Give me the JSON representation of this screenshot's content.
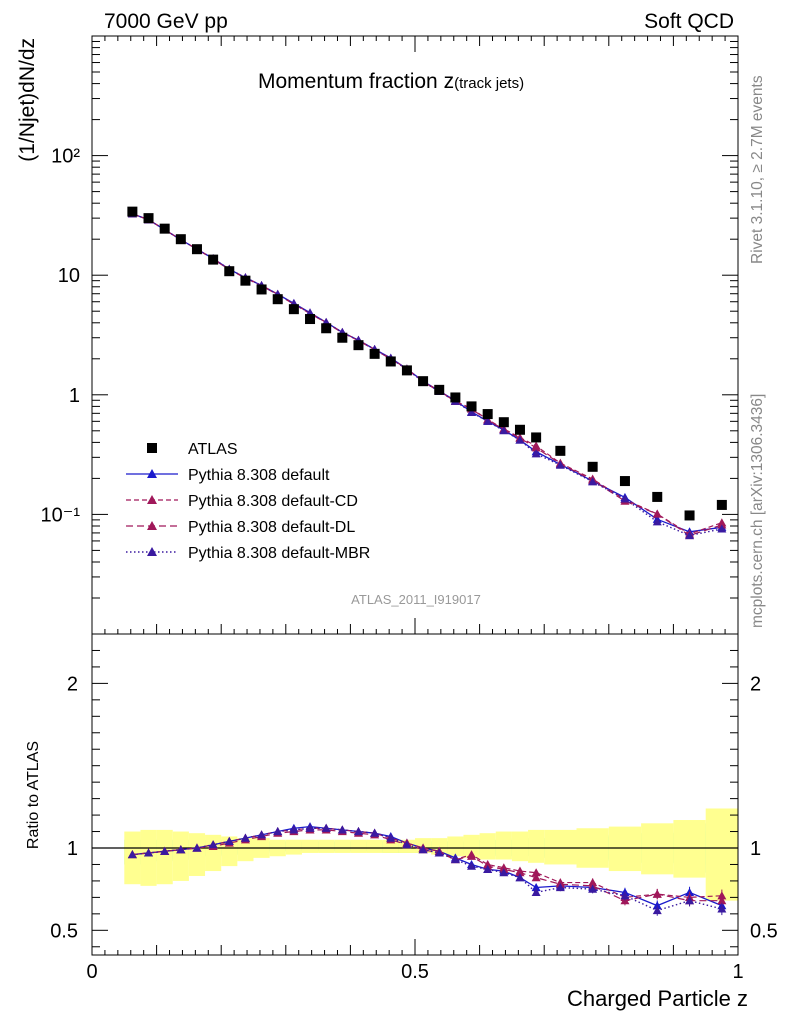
{
  "header": {
    "left": "7000 GeV pp",
    "right": "Soft QCD"
  },
  "side_labels": {
    "rivet": "Rivet 3.1.10, ≥ 2.7M events",
    "mcplots": "mcplots.cern.ch [arXiv:1306.3436]"
  },
  "chart_data": {
    "type": "line",
    "title_main": "Momentum fraction z",
    "title_sub": "(track jets)",
    "xlabel": "Charged Particle z",
    "ylabel": "(1/Njet)dN/dz",
    "ratio_ylabel": "Ratio to ATLAS",
    "analysis_tag": "ATLAS_2011_I919017",
    "xlim": [
      0,
      1
    ],
    "ylim": [
      0.01,
      1000
    ],
    "yscale": "log",
    "ratio_ylim": [
      0.35,
      2.3
    ],
    "x_ticks": [
      "0",
      "0.5",
      "1"
    ],
    "y_ticks": [
      "10⁻¹",
      "1",
      "10",
      "10²"
    ],
    "ratio_ticks": [
      "0.5",
      "1",
      "2"
    ],
    "legend_position": "lower-left",
    "colors": {
      "data": "#000000",
      "default": "#1a1acc",
      "cd": "#a0185a",
      "dl": "#a0185a",
      "mbr": "#3a1aa0",
      "band_inner": "#90f090",
      "band_outer": "#ffff90"
    },
    "x": [
      0.0625,
      0.0875,
      0.1125,
      0.1375,
      0.1625,
      0.1875,
      0.2125,
      0.2375,
      0.2625,
      0.2875,
      0.3125,
      0.3375,
      0.3625,
      0.3875,
      0.4125,
      0.4375,
      0.4625,
      0.4875,
      0.5125,
      0.5375,
      0.5625,
      0.5875,
      0.6125,
      0.6375,
      0.6625,
      0.6875,
      0.725,
      0.775,
      0.825,
      0.875,
      0.925,
      0.975
    ],
    "data": {
      "name": "ATLAS",
      "values": [
        34.0,
        30.0,
        24.5,
        20.0,
        16.5,
        13.5,
        10.8,
        9.0,
        7.6,
        6.3,
        5.2,
        4.3,
        3.6,
        3.0,
        2.6,
        2.2,
        1.9,
        1.6,
        1.3,
        1.1,
        0.95,
        0.8,
        0.69,
        0.59,
        0.51,
        0.44,
        0.34,
        0.25,
        0.19,
        0.14,
        0.098,
        0.12
      ]
    },
    "series": [
      {
        "name": "Pythia 8.308 default",
        "key": "default",
        "ratio": [
          0.96,
          0.97,
          0.98,
          0.99,
          1.0,
          1.02,
          1.04,
          1.06,
          1.08,
          1.1,
          1.12,
          1.13,
          1.12,
          1.11,
          1.1,
          1.09,
          1.07,
          1.03,
          1.0,
          0.98,
          0.94,
          0.9,
          0.87,
          0.86,
          0.82,
          0.76,
          0.77,
          0.76,
          0.73,
          0.65,
          0.73,
          0.65
        ]
      },
      {
        "name": "Pythia 8.308 default-CD",
        "key": "cd",
        "ratio": [
          0.96,
          0.97,
          0.98,
          0.99,
          1.0,
          1.02,
          1.04,
          1.06,
          1.08,
          1.1,
          1.11,
          1.12,
          1.12,
          1.11,
          1.1,
          1.09,
          1.06,
          1.03,
          1.0,
          0.98,
          0.93,
          0.96,
          0.9,
          0.88,
          0.86,
          0.85,
          0.79,
          0.79,
          0.7,
          0.72,
          0.7,
          0.71
        ]
      },
      {
        "name": "Pythia 8.308 default-DL",
        "key": "dl",
        "ratio": [
          0.96,
          0.97,
          0.98,
          0.99,
          1.0,
          1.01,
          1.03,
          1.05,
          1.07,
          1.09,
          1.1,
          1.11,
          1.11,
          1.1,
          1.09,
          1.08,
          1.05,
          1.02,
          0.99,
          0.97,
          0.93,
          0.95,
          0.89,
          0.87,
          0.85,
          0.82,
          0.78,
          0.77,
          0.68,
          0.72,
          0.68,
          0.68
        ]
      },
      {
        "name": "Pythia 8.308 default-MBR",
        "key": "mbr",
        "ratio": [
          0.96,
          0.97,
          0.98,
          0.99,
          1.0,
          1.02,
          1.04,
          1.06,
          1.08,
          1.1,
          1.11,
          1.12,
          1.12,
          1.11,
          1.1,
          1.09,
          1.06,
          1.02,
          0.99,
          0.97,
          0.93,
          0.89,
          0.87,
          0.85,
          0.82,
          0.73,
          0.76,
          0.75,
          0.71,
          0.62,
          0.68,
          0.63
        ]
      }
    ],
    "band_x": [
      0.05,
      0.075,
      0.1,
      0.125,
      0.15,
      0.175,
      0.2,
      0.225,
      0.25,
      0.275,
      0.3,
      0.325,
      0.35,
      0.375,
      0.4,
      0.425,
      0.45,
      0.475,
      0.5,
      0.525,
      0.55,
      0.575,
      0.6,
      0.625,
      0.65,
      0.675,
      0.7,
      0.75,
      0.8,
      0.85,
      0.9,
      0.95,
      1.0
    ],
    "band_inner": {
      "low": [
        0.9,
        0.91,
        0.92,
        0.93,
        0.94,
        0.95,
        0.96,
        0.97,
        0.97,
        0.98,
        0.98,
        0.98,
        0.98,
        0.98,
        0.98,
        0.98,
        0.97,
        0.97,
        0.97,
        0.97,
        0.96,
        0.96,
        0.96,
        0.95,
        0.95,
        0.95,
        0.94,
        0.93,
        0.92,
        0.91,
        0.9,
        0.85
      ],
      "high": [
        1.05,
        1.05,
        1.05,
        1.05,
        1.05,
        1.05,
        1.05,
        1.04,
        1.04,
        1.04,
        1.04,
        1.04,
        1.04,
        1.04,
        1.04,
        1.04,
        1.04,
        1.04,
        1.04,
        1.04,
        1.04,
        1.05,
        1.05,
        1.05,
        1.06,
        1.06,
        1.06,
        1.07,
        1.08,
        1.09,
        1.1,
        1.15
      ]
    },
    "band_outer": {
      "low": [
        0.78,
        0.77,
        0.78,
        0.8,
        0.83,
        0.86,
        0.89,
        0.92,
        0.94,
        0.95,
        0.96,
        0.97,
        0.97,
        0.97,
        0.97,
        0.97,
        0.97,
        0.97,
        0.97,
        0.96,
        0.95,
        0.94,
        0.93,
        0.93,
        0.92,
        0.91,
        0.9,
        0.88,
        0.86,
        0.84,
        0.82,
        0.68
      ],
      "high": [
        1.1,
        1.11,
        1.11,
        1.1,
        1.09,
        1.08,
        1.07,
        1.06,
        1.06,
        1.05,
        1.05,
        1.05,
        1.05,
        1.05,
        1.05,
        1.05,
        1.05,
        1.05,
        1.06,
        1.06,
        1.07,
        1.08,
        1.09,
        1.1,
        1.1,
        1.11,
        1.11,
        1.12,
        1.13,
        1.15,
        1.17,
        1.24
      ]
    }
  }
}
